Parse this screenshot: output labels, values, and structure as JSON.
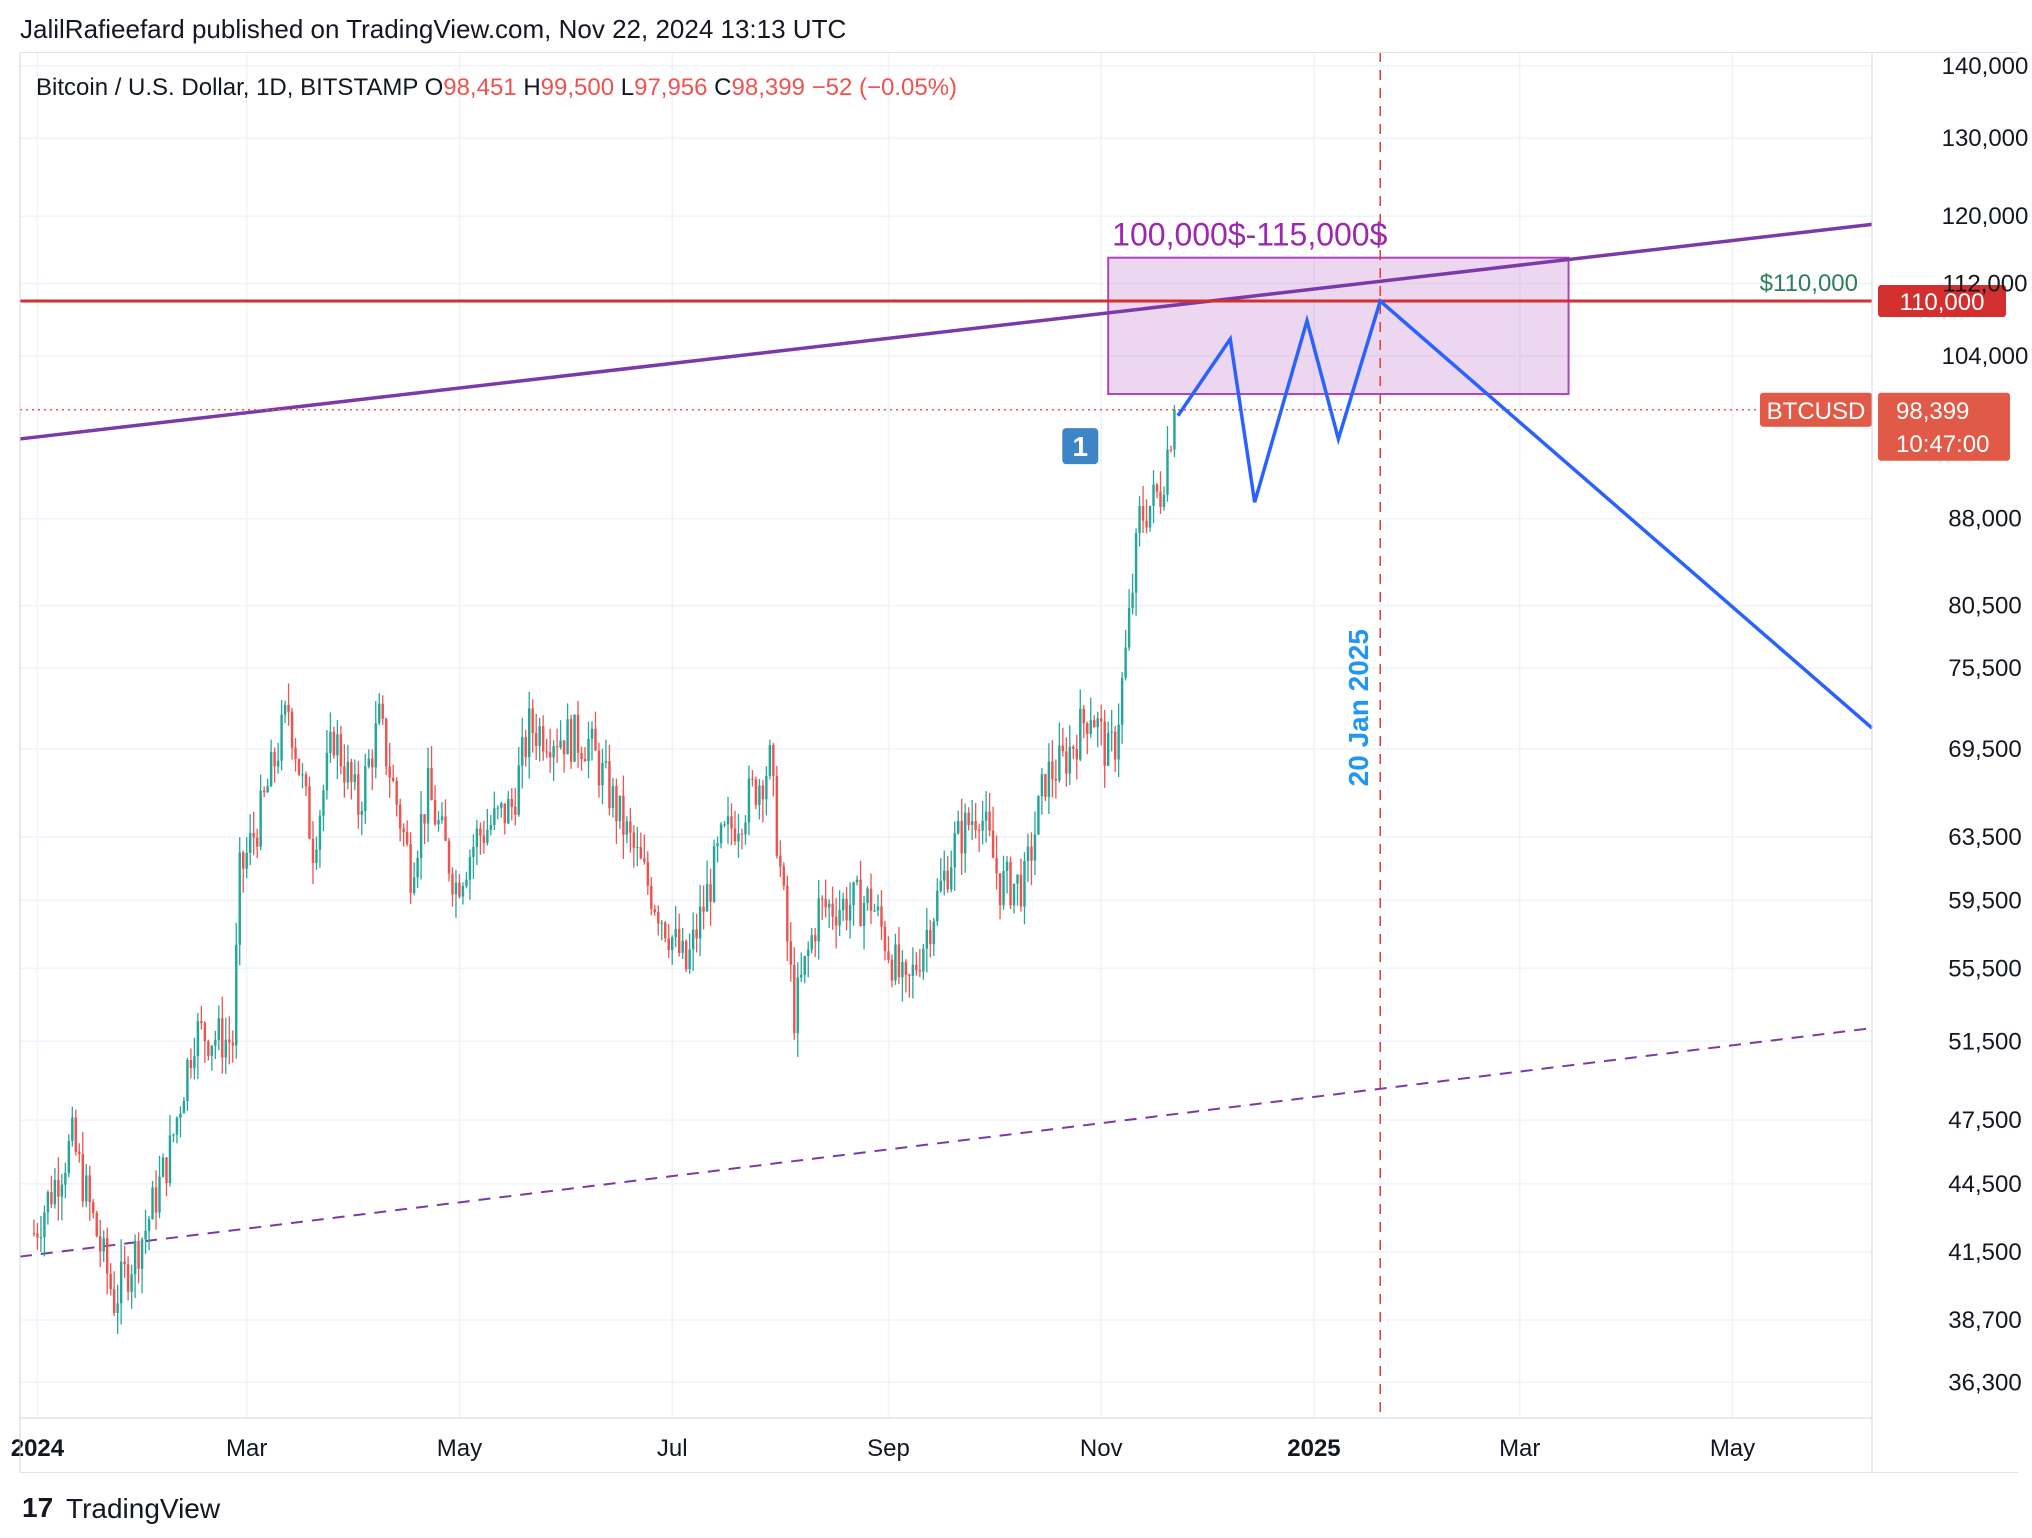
{
  "header": {
    "publisher_line": "JalilRafieefard published on TradingView.com, Nov 22, 2024 13:13 UTC"
  },
  "legend": {
    "symbol": "Bitcoin / U.S. Dollar, 1D, BITSTAMP",
    "o_label": "O",
    "o_value": "98,451",
    "h_label": "H",
    "h_value": "99,500",
    "l_label": "L",
    "l_value": "97,956",
    "c_label": "C",
    "c_value": "98,399",
    "change": "−52 (−0.05%)"
  },
  "footer": {
    "brand": "TradingView",
    "logo_glyph": "17"
  },
  "colors": {
    "up": "#26a69a",
    "down": "#ef5350",
    "grid": "#f0f3fa",
    "purple_line": "#7b3aa8",
    "purple_zone": "#ab47bc",
    "red_line": "#d32f2f",
    "forecast": "#2962ff",
    "event_line": "#e53935",
    "event_text": "#2196f3",
    "price_tag": "#e05a47",
    "marker": "#3d85c6"
  },
  "chart_data": {
    "type": "candlestick",
    "title": "Bitcoin / U.S. Dollar, 1D, BITSTAMP",
    "scale": "log",
    "ylim": [
      35000,
      142000
    ],
    "y_ticks": [
      "140,000",
      "130,000",
      "120,000",
      "112,000",
      "104,000",
      "88,000",
      "80,500",
      "75,500",
      "69,500",
      "63,500",
      "59,500",
      "55,500",
      "51,500",
      "47,500",
      "44,500",
      "41,500",
      "38,700",
      "36,300"
    ],
    "x_ticks": [
      "2024",
      "Mar",
      "May",
      "Jul",
      "Sep",
      "Nov",
      "2025",
      "Mar",
      "May"
    ],
    "x_tick_dates": [
      "2024-01-01",
      "2024-03-01",
      "2024-05-01",
      "2024-07-01",
      "2024-09-01",
      "2024-11-01",
      "2025-01-01",
      "2025-03-01",
      "2025-05-01"
    ],
    "x_range": [
      "2023-12-27",
      "2025-06-10"
    ],
    "price_anchors": [
      [
        "2023-12-31",
        42300
      ],
      [
        "2024-01-11",
        46500
      ],
      [
        "2024-01-23",
        39500
      ],
      [
        "2024-02-01",
        42500
      ],
      [
        "2024-02-08",
        46000
      ],
      [
        "2024-02-15",
        52000
      ],
      [
        "2024-02-26",
        51500
      ],
      [
        "2024-02-28",
        61000
      ],
      [
        "2024-03-05",
        65000
      ],
      [
        "2024-03-13",
        72500
      ],
      [
        "2024-03-20",
        63000
      ],
      [
        "2024-03-26",
        70500
      ],
      [
        "2024-04-02",
        65500
      ],
      [
        "2024-04-08",
        71500
      ],
      [
        "2024-04-17",
        61500
      ],
      [
        "2024-04-22",
        66500
      ],
      [
        "2024-04-30",
        60500
      ],
      [
        "2024-05-06",
        63500
      ],
      [
        "2024-05-16",
        65500
      ],
      [
        "2024-05-21",
        71000
      ],
      [
        "2024-06-07",
        70000
      ],
      [
        "2024-06-24",
        60500
      ],
      [
        "2024-07-05",
        55500
      ],
      [
        "2024-07-15",
        63000
      ],
      [
        "2024-07-29",
        68500
      ],
      [
        "2024-08-05",
        53000
      ],
      [
        "2024-08-12",
        59000
      ],
      [
        "2024-08-27",
        59500
      ],
      [
        "2024-09-06",
        54000
      ],
      [
        "2024-09-20",
        63000
      ],
      [
        "2024-09-27",
        65500
      ],
      [
        "2024-10-03",
        60500
      ],
      [
        "2024-10-10",
        60500
      ],
      [
        "2024-10-16",
        67500
      ],
      [
        "2024-10-21",
        68500
      ],
      [
        "2024-10-29",
        72500
      ],
      [
        "2024-11-03",
        69000
      ],
      [
        "2024-11-05",
        70000
      ],
      [
        "2024-11-08",
        76500
      ],
      [
        "2024-11-12",
        88000
      ],
      [
        "2024-11-18",
        90500
      ],
      [
        "2024-11-22",
        98399
      ]
    ],
    "overlays": {
      "resistance_level": 110000,
      "resistance_label": "$110,000",
      "resistance_tag": "110,000",
      "zone_label": "100,000$-115,000$",
      "zone": {
        "from": "2024-11-03",
        "to": "2025-03-15",
        "low": 100000,
        "high": 115000
      },
      "upper_trendline": [
        [
          "2023-12-27",
          95500
        ],
        [
          "2025-06-10",
          119000
        ]
      ],
      "lower_trendline": [
        [
          "2023-12-27",
          41300
        ],
        [
          "2025-06-10",
          52200
        ]
      ],
      "forecast_path": [
        [
          "2024-11-23",
          97800
        ],
        [
          "2024-12-08",
          105800
        ],
        [
          "2024-12-15",
          89500
        ],
        [
          "2024-12-30",
          107800
        ],
        [
          "2025-01-08",
          95500
        ],
        [
          "2025-01-20",
          110000
        ],
        [
          "2025-06-10",
          71000
        ]
      ],
      "event_line_date": "2025-01-20",
      "event_label": "20 Jan 2025",
      "marker_label": "1",
      "marker_date": "2024-10-26",
      "marker_price": 94800,
      "last_price_symbol": "BTCUSD",
      "last_price": "98,399",
      "countdown": "10:47:00"
    }
  }
}
